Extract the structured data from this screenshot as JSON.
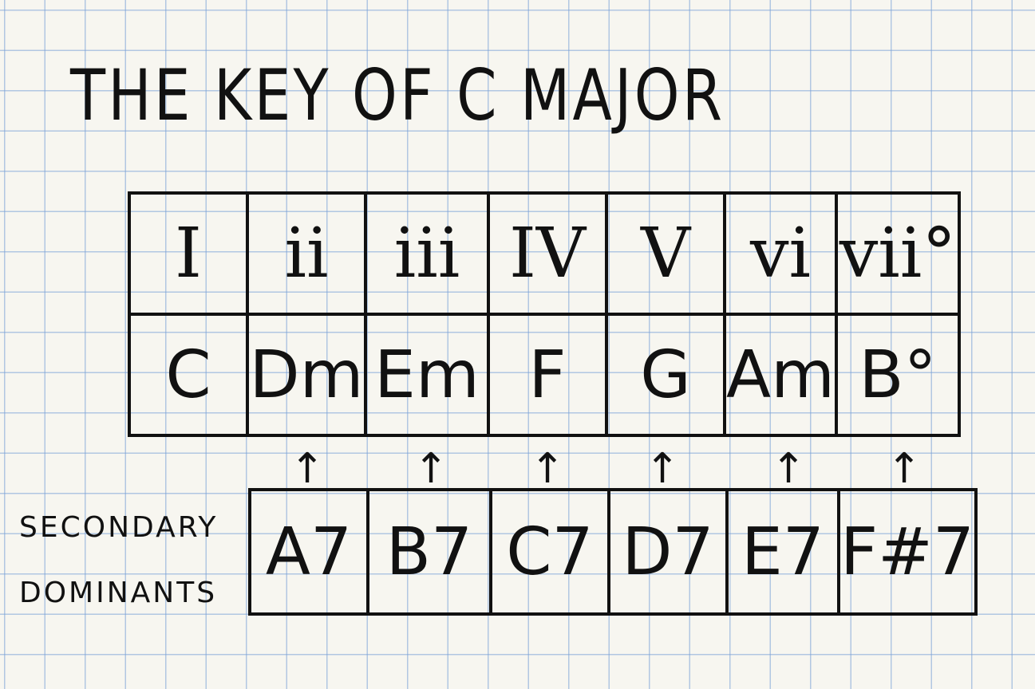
{
  "title": "The Key of C Major",
  "numerals": [
    "I",
    "ii",
    "iii",
    "IV",
    "V",
    "vi",
    "vii°"
  ],
  "chords": [
    "C",
    "Dm",
    "Em",
    "F",
    "G",
    "Am",
    "B°"
  ],
  "arrow_glyph": "↑",
  "secondary_label": [
    "Secondary",
    "Dominants"
  ],
  "secondary_dominants": [
    "A7",
    "B7",
    "C7",
    "D7",
    "E7",
    "F#7"
  ],
  "colors": {
    "ink": "#111111",
    "paper": "#f7f6f0",
    "grid": "#78a0d7"
  }
}
